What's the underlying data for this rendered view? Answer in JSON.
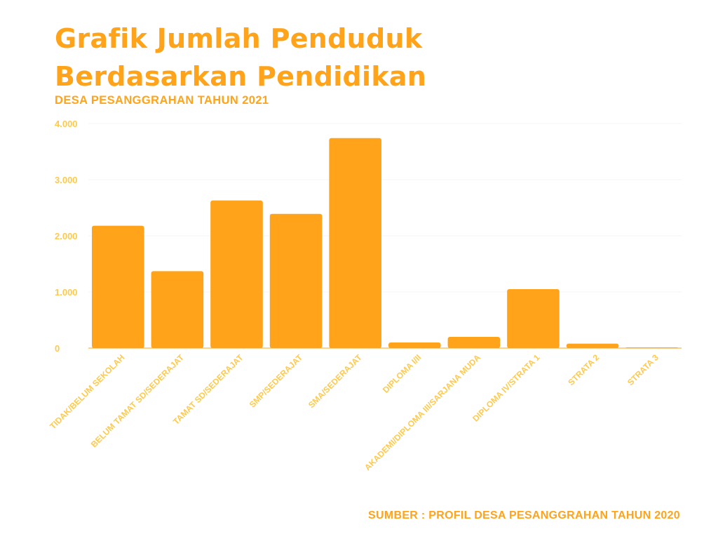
{
  "header": {
    "title_line1": "Grafik Jumlah Penduduk",
    "title_line2": "Berdasarkan Pendidikan",
    "subtitle": "DESA PESANGGRAHAN TAHUN 2021"
  },
  "footer": {
    "source": "SUMBER : PROFIL DESA PESANGGRAHAN TAHUN 2020"
  },
  "colors": {
    "bar": "#ffa41a",
    "text": "#ffa41a",
    "tick_text": "#ffc94d",
    "grid": "#f6f6f6"
  },
  "chart_data": {
    "type": "bar",
    "title": "Grafik Jumlah Penduduk Berdasarkan Pendidikan",
    "subtitle": "DESA PESANGGRAHAN TAHUN 2021",
    "xlabel": "",
    "ylabel": "",
    "categories": [
      "TIDAK/BELUM SEKOLAH",
      "BELUM TAMAT SD/SEDERAJAT",
      "TAMAT SD/SEDERAJAT",
      "SMP/SEDERAJAT",
      "SMA/SEDERAJAT",
      "DIPLOMA I/II",
      "AKADEMI/DIPLOMA III/SARJANA MUDA",
      "DIPLOMA IV/STRATA 1",
      "STRATA 2",
      "STRATA 3"
    ],
    "values": [
      2180,
      1370,
      2630,
      2390,
      3740,
      100,
      200,
      1050,
      80,
      5
    ],
    "ylim": [
      0,
      4000
    ],
    "yticks": [
      0,
      1000,
      2000,
      3000,
      4000
    ],
    "ytick_labels": [
      "0",
      "1.000",
      "2.000",
      "3.000",
      "4.000"
    ],
    "grid": true,
    "legend": "none"
  }
}
